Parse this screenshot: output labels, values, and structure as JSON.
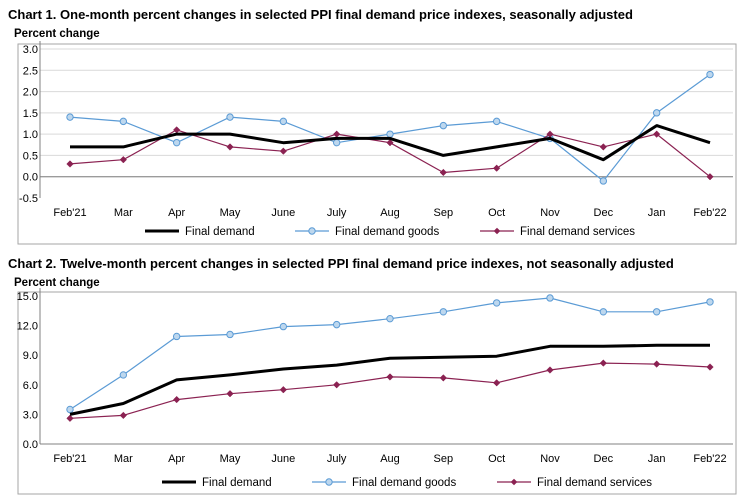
{
  "colors": {
    "final_demand": "#000000",
    "goods": "#5B9BD5",
    "goods_fill": "#BDD7EE",
    "services": "#8B2252",
    "axis": "#808080",
    "grid": "#D9D9D9",
    "border": "#A6A6A6"
  },
  "chart_data": [
    {
      "type": "line",
      "title": "Chart 1. One-month percent changes in selected PPI final demand price indexes, seasonally adjusted",
      "ylabel": "Percent change",
      "xlabel": "",
      "categories": [
        "Feb'21",
        "Mar",
        "Apr",
        "May",
        "June",
        "July",
        "Aug",
        "Sep",
        "Oct",
        "Nov",
        "Dec",
        "Jan",
        "Feb'22"
      ],
      "ylim": [
        -0.5,
        3.0
      ],
      "yticks": [
        -0.5,
        0.0,
        0.5,
        1.0,
        1.5,
        2.0,
        2.5,
        3.0
      ],
      "ytick_labels": [
        "-0.5",
        "0.0",
        "0.5",
        "1.0",
        "1.5",
        "2.0",
        "2.5",
        "3.0"
      ],
      "grid": true,
      "legend_position": "bottom",
      "series": [
        {
          "name": "Final demand",
          "values": [
            0.7,
            0.7,
            1.0,
            1.0,
            0.8,
            0.9,
            0.9,
            0.5,
            0.7,
            0.9,
            0.4,
            1.2,
            0.8
          ]
        },
        {
          "name": "Final demand goods",
          "values": [
            1.4,
            1.3,
            0.8,
            1.4,
            1.3,
            0.8,
            1.0,
            1.2,
            1.3,
            0.9,
            -0.1,
            1.5,
            2.4
          ]
        },
        {
          "name": "Final demand services",
          "values": [
            0.3,
            0.4,
            1.1,
            0.7,
            0.6,
            1.0,
            0.8,
            0.1,
            0.2,
            1.0,
            0.7,
            1.0,
            0.0
          ]
        }
      ]
    },
    {
      "type": "line",
      "title": "Chart 2. Twelve-month percent changes in selected PPI final demand price indexes, not seasonally adjusted",
      "ylabel": "Percent change",
      "xlabel": "",
      "categories": [
        "Feb'21",
        "Mar",
        "Apr",
        "May",
        "June",
        "July",
        "Aug",
        "Sep",
        "Oct",
        "Nov",
        "Dec",
        "Jan",
        "Feb'22"
      ],
      "ylim": [
        0.0,
        15.0
      ],
      "yticks": [
        0.0,
        3.0,
        6.0,
        9.0,
        12.0,
        15.0
      ],
      "ytick_labels": [
        "0.0",
        "3.0",
        "6.0",
        "9.0",
        "12.0",
        "15.0"
      ],
      "grid": false,
      "legend_position": "bottom",
      "series": [
        {
          "name": "Final demand",
          "values": [
            3.0,
            4.1,
            6.5,
            7.0,
            7.6,
            8.0,
            8.7,
            8.8,
            8.9,
            9.9,
            9.9,
            10.0,
            10.0
          ]
        },
        {
          "name": "Final demand goods",
          "values": [
            3.5,
            7.0,
            10.9,
            11.1,
            11.9,
            12.1,
            12.7,
            13.4,
            14.3,
            14.8,
            13.4,
            13.4,
            14.4
          ]
        },
        {
          "name": "Final demand services",
          "values": [
            2.6,
            2.9,
            4.5,
            5.1,
            5.5,
            6.0,
            6.8,
            6.7,
            6.2,
            7.5,
            8.2,
            8.1,
            7.8
          ]
        }
      ]
    }
  ]
}
